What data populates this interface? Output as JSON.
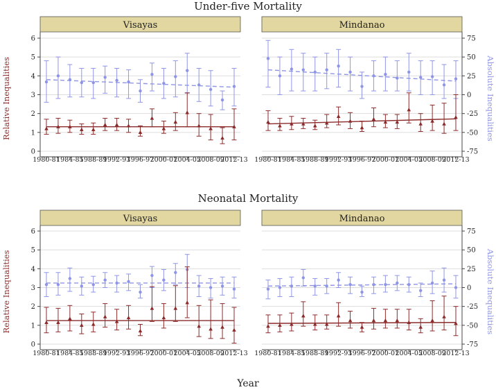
{
  "figure": {
    "xlabel": "Year",
    "y_left_label": "Relative Inequalities",
    "y_right_label": "Absolute Inequalities"
  },
  "colors": {
    "relative": "#8b2a2a",
    "absolute": "#8f95e6",
    "strip": "#e2d7a0",
    "grid": "#dddddd",
    "axis": "#444444"
  },
  "chart_data": [
    {
      "type": "scatter",
      "title": "Under-five Mortality",
      "panels": [
        {
          "name": "Visayas",
          "x": [
            "1980-81",
            "1982-83",
            "1984-85",
            "1986-87",
            "1988-89",
            "1990-91",
            "1992-93",
            "1994-95",
            "1996-97",
            "1998-99",
            "2000-01",
            "2002-03",
            "2004-05",
            "2006-07",
            "2008-09",
            "2010-11",
            "2012-13"
          ],
          "relative": {
            "values": [
              1.2,
              1.3,
              1.3,
              1.15,
              1.15,
              1.4,
              1.4,
              1.35,
              1.0,
              1.75,
              1.2,
              1.55,
              2.05,
              1.35,
              1.2,
              0.7,
              1.3
            ],
            "lower": [
              0.9,
              0.95,
              1.0,
              0.9,
              0.9,
              1.1,
              1.1,
              1.0,
              0.8,
              1.3,
              0.95,
              1.1,
              1.3,
              0.8,
              0.6,
              0.4,
              0.6
            ],
            "upper": [
              1.7,
              1.75,
              1.65,
              1.45,
              1.5,
              1.75,
              1.75,
              1.7,
              1.35,
              2.25,
              1.6,
              2.05,
              3.1,
              2.0,
              1.95,
              1.25,
              2.25
            ],
            "trend": [
              1.3,
              1.3
            ]
          },
          "absolute": {
            "values": [
              17,
              25,
              20,
              16,
              16,
              23,
              19,
              17,
              5,
              27,
              15,
              24,
              32,
              13,
              7,
              -7,
              11
            ],
            "lower": [
              -10,
              -5,
              -3,
              -3,
              -5,
              2,
              -3,
              -5,
              -10,
              5,
              -5,
              -3,
              2,
              -9,
              -15,
              -20,
              -15
            ],
            "upper": [
              45,
              50,
              40,
              35,
              35,
              38,
              35,
              33,
              20,
              42,
              35,
              45,
              55,
              35,
              32,
              5,
              35
            ],
            "trend": [
              20,
              10
            ]
          }
        },
        {
          "name": "Mindanao",
          "x": [
            "1980-81",
            "1982-83",
            "1984-85",
            "1986-87",
            "1988-89",
            "1990-91",
            "1992-93",
            "1994-95",
            "1996-97",
            "1998-99",
            "2000-01",
            "2002-03",
            "2004-05",
            "2006-07",
            "2008-09",
            "2010-11",
            "2012-13"
          ],
          "relative": {
            "values": [
              1.55,
              1.35,
              1.45,
              1.45,
              1.35,
              1.5,
              1.85,
              1.6,
              1.25,
              1.7,
              1.55,
              1.55,
              2.2,
              1.45,
              1.6,
              1.45,
              1.8
            ],
            "lower": [
              1.1,
              1.1,
              1.15,
              1.2,
              1.15,
              1.25,
              1.4,
              1.2,
              1.05,
              1.3,
              1.25,
              1.2,
              1.5,
              1.05,
              1.1,
              0.95,
              1.1
            ],
            "upper": [
              2.15,
              1.75,
              1.85,
              1.75,
              1.65,
              1.95,
              2.35,
              2.05,
              1.6,
              2.3,
              1.95,
              1.95,
              3.1,
              2.0,
              2.45,
              2.55,
              3.0
            ],
            "trend": [
              1.45,
              1.72
            ]
          },
          "absolute": {
            "values": [
              48,
              25,
              34,
              33,
              30,
              33,
              38,
              30,
              11,
              25,
              27,
              22,
              30,
              23,
              24,
              13,
              21
            ],
            "lower": [
              10,
              0,
              5,
              5,
              5,
              8,
              10,
              5,
              -5,
              5,
              5,
              5,
              5,
              0,
              0,
              -5,
              -5
            ],
            "upper": [
              72,
              50,
              60,
              55,
              50,
              55,
              60,
              50,
              30,
              45,
              50,
              45,
              55,
              45,
              45,
              40,
              45
            ],
            "trend": [
              33,
              18
            ]
          }
        }
      ]
    },
    {
      "type": "scatter",
      "title": "Neonatal Mortality",
      "panels": [
        {
          "name": "Visayas",
          "x": [
            "1980-81",
            "1982-83",
            "1984-85",
            "1986-87",
            "1988-89",
            "1990-91",
            "1992-93",
            "1994-95",
            "1996-97",
            "1998-99",
            "2000-01",
            "2002-03",
            "2004-05",
            "2006-07",
            "2008-09",
            "2010-11",
            "2012-13"
          ],
          "relative": {
            "values": [
              1.15,
              1.15,
              1.35,
              1.0,
              1.05,
              1.45,
              1.2,
              1.4,
              0.7,
              1.9,
              1.4,
              1.9,
              2.2,
              0.95,
              0.8,
              0.9,
              0.75
            ],
            "lower": [
              0.6,
              0.65,
              0.7,
              0.55,
              0.65,
              0.9,
              0.75,
              0.8,
              0.45,
              1.2,
              0.85,
              1.2,
              1.4,
              0.4,
              0.3,
              0.3,
              0.05
            ],
            "upper": [
              1.95,
              1.9,
              2.05,
              1.6,
              1.7,
              2.15,
              1.85,
              2.05,
              1.05,
              3.05,
              2.15,
              3.1,
              4.1,
              2.05,
              2.35,
              2.15,
              1.95
            ],
            "trend": [
              1.25,
              1.25
            ]
          },
          "absolute": {
            "values": [
              4,
              4,
              12,
              2,
              4,
              10,
              6,
              8,
              -6,
              16,
              10,
              20,
              24,
              2,
              0,
              2,
              -2
            ],
            "lower": [
              -12,
              -10,
              -5,
              -10,
              -6,
              0,
              -6,
              -4,
              -14,
              0,
              -4,
              4,
              0,
              -12,
              -14,
              -10,
              -14
            ],
            "upper": [
              20,
              20,
              26,
              14,
              15,
              20,
              16,
              18,
              4,
              28,
              24,
              32,
              44,
              16,
              12,
              14,
              14
            ],
            "trend": [
              6,
              6
            ]
          }
        },
        {
          "name": "Mindanao",
          "x": [
            "1980-81",
            "1982-83",
            "1984-85",
            "1986-87",
            "1988-89",
            "1990-91",
            "1992-93",
            "1994-95",
            "1996-97",
            "1998-99",
            "2000-01",
            "2002-03",
            "2004-05",
            "2006-07",
            "2008-09",
            "2010-11",
            "2012-13"
          ],
          "relative": {
            "values": [
              0.95,
              1.0,
              1.05,
              1.5,
              1.05,
              1.05,
              1.5,
              1.25,
              0.9,
              1.25,
              1.25,
              1.25,
              1.15,
              0.9,
              1.25,
              1.45,
              1.1
            ],
            "lower": [
              0.6,
              0.65,
              0.7,
              0.95,
              0.75,
              0.8,
              0.95,
              0.85,
              0.65,
              0.8,
              0.85,
              0.85,
              0.75,
              0.6,
              0.7,
              0.75,
              0.45
            ],
            "upper": [
              1.55,
              1.55,
              1.65,
              2.25,
              1.55,
              1.55,
              2.2,
              1.75,
              1.15,
              1.9,
              1.85,
              1.85,
              1.85,
              1.35,
              2.3,
              2.55,
              2.0
            ],
            "trend": [
              1.1,
              1.15
            ]
          },
          "absolute": {
            "values": [
              -2,
              0,
              2,
              13,
              2,
              2,
              10,
              4,
              -6,
              4,
              4,
              6,
              4,
              -4,
              6,
              10,
              0
            ],
            "lower": [
              -15,
              -12,
              -12,
              2,
              -10,
              -8,
              0,
              -8,
              -12,
              -8,
              -6,
              -4,
              -6,
              -12,
              -8,
              -6,
              -14
            ],
            "upper": [
              10,
              12,
              14,
              24,
              12,
              12,
              20,
              14,
              2,
              14,
              16,
              16,
              14,
              6,
              22,
              26,
              16
            ],
            "trend": [
              2,
              5
            ]
          }
        }
      ]
    }
  ],
  "axes": {
    "left_ticks": [
      "0",
      "1",
      "2",
      "3",
      "4",
      "5",
      "6"
    ],
    "right_ticks": [
      "-75",
      "-50",
      "-25",
      "0",
      "25",
      "50",
      "75"
    ],
    "x_tick_labels": [
      "1980-81",
      "1984-85",
      "1988-89",
      "1992-93",
      "1996-97",
      "2000-01",
      "2004-05",
      "2008-09",
      "2012-13"
    ],
    "left_range": [
      0,
      6
    ],
    "right_range": [
      -75,
      75
    ]
  }
}
